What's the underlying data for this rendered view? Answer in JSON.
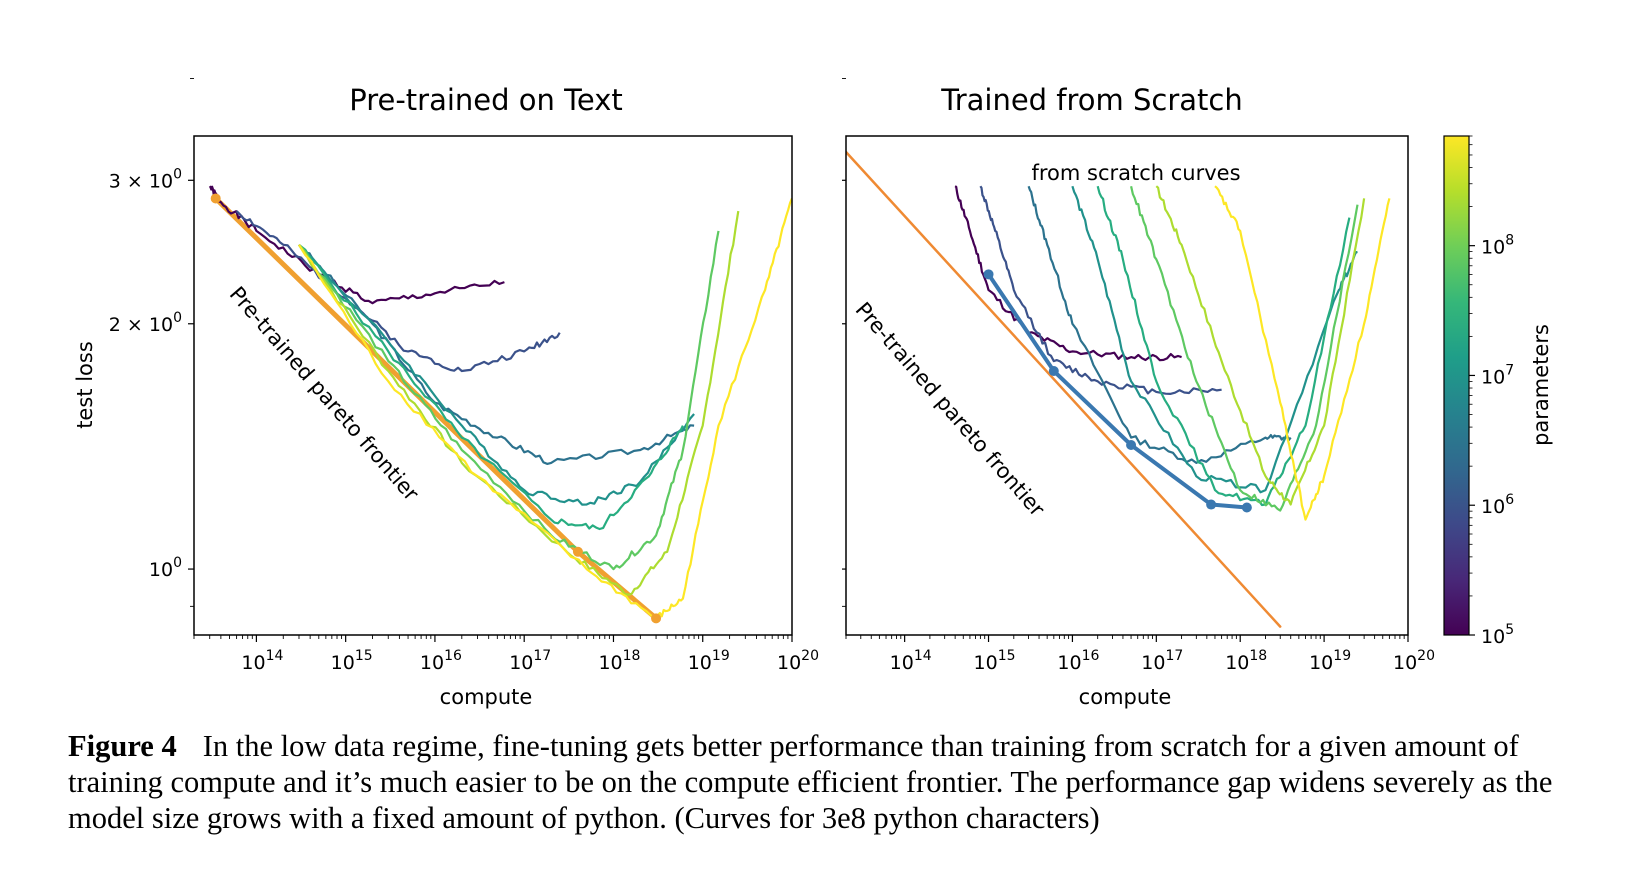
{
  "chart_data": [
    {
      "type": "line",
      "title": "Pre-trained on Text",
      "xlabel": "compute",
      "ylabel": "test loss",
      "xscale": "log",
      "yscale": "log",
      "xlim": [
        20000000000000.0,
        1e+20
      ],
      "ylim": [
        0.83,
        3.4
      ],
      "xticks": [
        100000000000000.0,
        1000000000000000.0,
        1e+16,
        1e+17,
        1e+18,
        1e+19,
        1e+20
      ],
      "xtick_labels": [
        {
          "base": "10",
          "exp": "14"
        },
        {
          "base": "10",
          "exp": "15"
        },
        {
          "base": "10",
          "exp": "16"
        },
        {
          "base": "10",
          "exp": "17"
        },
        {
          "base": "10",
          "exp": "18"
        },
        {
          "base": "10",
          "exp": "19"
        },
        {
          "base": "10",
          "exp": "20"
        }
      ],
      "yticks": [
        1,
        2,
        3
      ],
      "ytick_labels": [
        {
          "base": "10",
          "exp": "0",
          "prefix": ""
        },
        {
          "base": "10",
          "exp": "0",
          "prefix": "2 × "
        },
        {
          "base": "10",
          "exp": "0",
          "prefix": "3 × "
        }
      ],
      "annotation": {
        "text": "Pre-trained pareto frontier",
        "x": 500000000000000.0,
        "y": 1.62
      },
      "frontier": {
        "color": "#f0a030",
        "x": [
          35000000000000.0,
          4e+17,
          3e+18
        ],
        "y": [
          2.85,
          1.05,
          0.87
        ]
      },
      "series": [
        {
          "color": "#440154",
          "x": [
            30000000000000.0,
            40000000000000.0,
            100000000000000.0,
            500000000000000.0,
            2000000000000000.0,
            1e+16,
            6e+16
          ],
          "y": [
            2.95,
            2.82,
            2.6,
            2.3,
            2.12,
            2.18,
            2.25
          ]
        },
        {
          "color": "#3b528b",
          "x": [
            60000000000000.0,
            200000000000000.0,
            1000000000000000.0,
            5000000000000000.0,
            2e+16,
            1e+17,
            2.5e+17
          ],
          "y": [
            2.75,
            2.5,
            2.15,
            1.85,
            1.75,
            1.85,
            1.95
          ]
        },
        {
          "color": "#2c728e",
          "x": [
            300000000000000.0,
            2000000000000000.0,
            1e+16,
            5e+16,
            2e+17,
            2e+18,
            8e+18
          ],
          "y": [
            2.5,
            2.0,
            1.6,
            1.45,
            1.35,
            1.4,
            1.5
          ]
        },
        {
          "color": "#21918c",
          "x": [
            300000000000000.0,
            3000000000000000.0,
            2e+16,
            1e+17,
            5e+17,
            2e+18,
            8e+18
          ],
          "y": [
            2.5,
            1.9,
            1.5,
            1.25,
            1.2,
            1.28,
            1.55
          ]
        },
        {
          "color": "#27ad81",
          "x": [
            300000000000000.0,
            3000000000000000.0,
            2e+16,
            2e+17,
            7e+17,
            2.5e+18,
            6e+18
          ],
          "y": [
            2.5,
            1.85,
            1.45,
            1.15,
            1.12,
            1.3,
            1.5
          ]
        },
        {
          "color": "#5ec962",
          "x": [
            300000000000000.0,
            3000000000000000.0,
            2e+16,
            2e+17,
            1e+18,
            3e+18,
            6e+18,
            1.5e+19
          ],
          "y": [
            2.5,
            1.8,
            1.4,
            1.1,
            1.0,
            1.1,
            1.4,
            2.6
          ]
        },
        {
          "color": "#addc30",
          "x": [
            300000000000000.0,
            3000000000000000.0,
            2e+16,
            3e+17,
            1.5e+18,
            4e+18,
            1e+19,
            2.5e+19
          ],
          "y": [
            2.5,
            1.75,
            1.35,
            1.05,
            0.93,
            1.05,
            1.5,
            2.75
          ]
        },
        {
          "color": "#fde725",
          "x": [
            300000000000000.0,
            3000000000000000.0,
            3e+16,
            5e+17,
            3e+18,
            6e+18,
            1.5e+19,
            5e+19,
            1e+20
          ],
          "y": [
            2.5,
            1.7,
            1.3,
            1.0,
            0.87,
            0.92,
            1.5,
            2.2,
            2.85
          ]
        }
      ]
    },
    {
      "type": "line",
      "title": "Trained from Scratch",
      "xlabel": "compute",
      "ylabel": "",
      "xscale": "log",
      "yscale": "log",
      "xlim": [
        20000000000000.0,
        1e+20
      ],
      "ylim": [
        0.83,
        3.4
      ],
      "xticks": [
        100000000000000.0,
        1000000000000000.0,
        1e+16,
        1e+17,
        1e+18,
        1e+19,
        1e+20
      ],
      "xtick_labels": [
        {
          "base": "10",
          "exp": "14"
        },
        {
          "base": "10",
          "exp": "15"
        },
        {
          "base": "10",
          "exp": "16"
        },
        {
          "base": "10",
          "exp": "17"
        },
        {
          "base": "10",
          "exp": "18"
        },
        {
          "base": "10",
          "exp": "19"
        },
        {
          "base": "10",
          "exp": "20"
        }
      ],
      "annotation_top": "from scratch curves",
      "annotation": {
        "text": "Pre-trained pareto frontier",
        "x": 300000000000000.0,
        "y": 1.55
      },
      "frontier": {
        "color": "#ef8a33",
        "x": [
          20000000000000.0,
          3e+18
        ],
        "y": [
          3.25,
          0.85
        ]
      },
      "scratch_frontier": {
        "color": "#3a78b0",
        "x": [
          1000000000000000.0,
          6000000000000000.0,
          5e+16,
          4.5e+17,
          1.2e+18
        ],
        "y": [
          2.3,
          1.75,
          1.42,
          1.2,
          1.19
        ]
      },
      "series": [
        {
          "color": "#440154",
          "x": [
            400000000000000.0,
            600000000000000.0,
            1000000000000000.0,
            3000000000000000.0,
            1e+16,
            5e+16,
            2e+17
          ],
          "y": [
            2.95,
            2.6,
            2.2,
            1.95,
            1.85,
            1.82,
            1.82
          ]
        },
        {
          "color": "#3b528b",
          "x": [
            800000000000000.0,
            1200000000000000.0,
            2000000000000000.0,
            6000000000000000.0,
            2e+16,
            1e+17,
            6e+17
          ],
          "y": [
            2.95,
            2.6,
            2.2,
            1.8,
            1.7,
            1.65,
            1.66
          ]
        },
        {
          "color": "#2c728e",
          "x": [
            3000000000000000.0,
            5000000000000000.0,
            1e+16,
            5e+16,
            3e+17,
            2e+18,
            4e+18
          ],
          "y": [
            2.95,
            2.5,
            2.0,
            1.45,
            1.35,
            1.45,
            1.45
          ]
        },
        {
          "color": "#21918c",
          "x": [
            1e+16,
            2e+16,
            5e+16,
            3e+17,
            2e+18,
            1.5e+19,
            2.5e+19
          ],
          "y": [
            2.95,
            2.4,
            1.7,
            1.3,
            1.25,
            2.2,
            2.45
          ]
        },
        {
          "color": "#27ad81",
          "x": [
            2e+16,
            4e+16,
            1e+17,
            5e+17,
            2e+18,
            6e+18,
            2e+19
          ],
          "y": [
            2.95,
            2.4,
            1.7,
            1.25,
            1.2,
            1.5,
            2.7
          ]
        },
        {
          "color": "#5ec962",
          "x": [
            5e+16,
            1e+17,
            3e+17,
            1e+18,
            3e+18,
            8e+18,
            2.5e+19
          ],
          "y": [
            2.95,
            2.4,
            1.7,
            1.25,
            1.18,
            1.5,
            2.8
          ]
        },
        {
          "color": "#addc30",
          "x": [
            1e+17,
            2e+17,
            6e+17,
            2e+18,
            4e+18,
            1e+19,
            3e+19
          ],
          "y": [
            2.95,
            2.5,
            1.8,
            1.3,
            1.2,
            1.5,
            2.85
          ]
        },
        {
          "color": "#fde725",
          "x": [
            5e+17,
            1e+18,
            3e+18,
            6e+18,
            1e+19,
            3e+19,
            6e+19
          ],
          "y": [
            2.95,
            2.6,
            1.6,
            1.15,
            1.3,
            2.0,
            2.85
          ]
        }
      ]
    }
  ],
  "colorbar": {
    "label": "parameters",
    "scale": "log",
    "range": [
      100000.0,
      700000000.0
    ],
    "ticks": [
      {
        "value": 100000.0,
        "base": "10",
        "exp": "5"
      },
      {
        "value": 1000000.0,
        "base": "10",
        "exp": "6"
      },
      {
        "value": 10000000.0,
        "base": "10",
        "exp": "7"
      },
      {
        "value": 100000000.0,
        "base": "10",
        "exp": "8"
      }
    ],
    "colormap": [
      "#440154",
      "#482878",
      "#3e4989",
      "#31688e",
      "#26828e",
      "#1f9e89",
      "#35b779",
      "#6ece58",
      "#b5de2b",
      "#fde725"
    ]
  },
  "caption": {
    "figure_label": "Figure 4",
    "text": "In the low data regime, fine-tuning gets better performance than training from scratch for a given amount of training compute and it’s much easier to be on the compute efficient frontier. The performance gap widens severely as the model size grows with a fixed amount of python. (Curves for 3e8 python characters)"
  }
}
